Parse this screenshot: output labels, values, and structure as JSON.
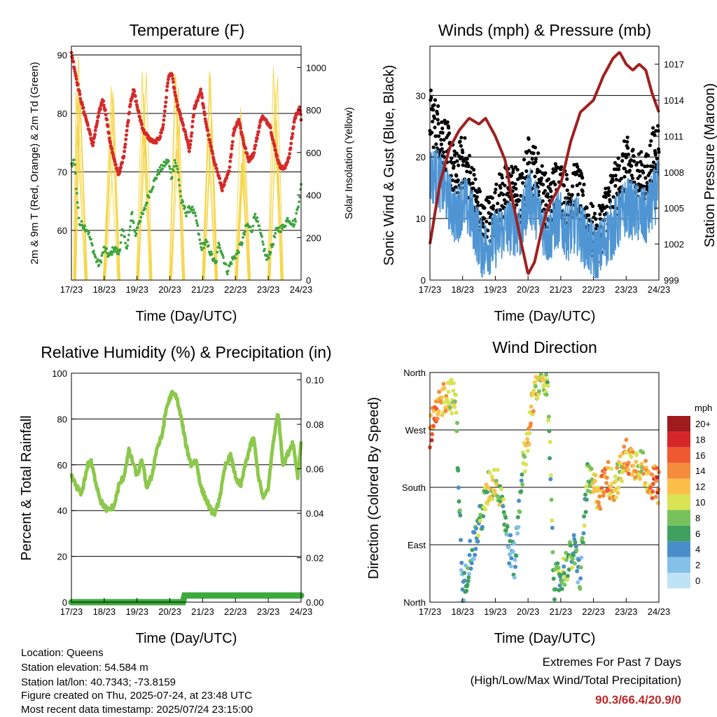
{
  "x_tick_labels": [
    "17/23",
    "18/23",
    "19/23",
    "20/23",
    "21/23",
    "22/23",
    "23/23",
    "24/23"
  ],
  "info": {
    "location": "Location: Queens",
    "elevation": "Station elevation: 54.584 m",
    "latlon": "Station lat/lon: 40.7343; -73.8159",
    "created": "Figure created on Thu, 2025-07-24, at 23:48 UTC",
    "recent": "Most recent data timestamp: 2025/07/24 23:15:00"
  },
  "extremes": {
    "line1": "Extremes For Past 7 Days",
    "line2": "(High/Low/Max Wind/Total Precipitation)",
    "values": "90.3/66.4/20.9/0"
  },
  "chart_data": [
    {
      "id": "temperature",
      "type": "line",
      "title": "Temperature (F)",
      "xlabel": "Time (Day/UTC)",
      "ylabel": "2m & 9m T (Red, Orange) & 2m Td (Green)",
      "ylabel_right": "Solar Insolation (Yellow)",
      "xlim": [
        0,
        7
      ],
      "ylim": [
        51.5,
        91.5
      ],
      "ylim_right": [
        0,
        1100
      ],
      "yticks": [
        60,
        70,
        80,
        90
      ],
      "yticks_right": [
        0,
        200,
        400,
        600,
        800,
        1000
      ],
      "grid": true,
      "colors": {
        "temperature": "#d42a2a",
        "dewpoint": "#3da33d",
        "solar": "#f5d442"
      },
      "series": [
        {
          "key": "temperature",
          "x": [
            0,
            0.05,
            0.15,
            0.3,
            0.5,
            0.65,
            0.8,
            0.95,
            1.05,
            1.15,
            1.3,
            1.45,
            1.6,
            1.8,
            1.9,
            2.05,
            2.2,
            2.4,
            2.55,
            2.7,
            2.8,
            2.95,
            3.05,
            3.2,
            3.35,
            3.5,
            3.6,
            3.75,
            3.95,
            4.05,
            4.15,
            4.3,
            4.45,
            4.6,
            4.8,
            4.95,
            5.1,
            5.25,
            5.4,
            5.55,
            5.7,
            5.8,
            6.05,
            6.2,
            6.35,
            6.5,
            6.65,
            6.8,
            6.95,
            7
          ],
          "y": [
            90.3,
            89,
            86,
            82,
            78,
            74.5,
            79,
            82.5,
            80,
            76,
            72,
            69.5,
            73,
            82,
            84,
            80,
            77,
            75.5,
            75,
            76,
            78,
            86,
            87,
            82,
            79,
            76,
            73.5,
            81,
            84,
            80,
            77,
            73,
            70,
            67,
            70,
            77,
            79,
            75,
            72,
            73,
            77,
            79.5,
            78,
            74,
            71,
            70.5,
            73,
            79,
            81,
            79
          ]
        },
        {
          "key": "dewpoint",
          "x": [
            0,
            0.1,
            0.15,
            0.25,
            0.35,
            0.5,
            0.65,
            0.75,
            0.85,
            1,
            1.15,
            1.3,
            1.45,
            1.55,
            1.7,
            1.85,
            1.95,
            2.05,
            2.2,
            2.35,
            2.5,
            2.65,
            2.8,
            2.95,
            3.05,
            3.15,
            3.25,
            3.35,
            3.5,
            3.65,
            3.8,
            3.95,
            4.1,
            4.25,
            4.4,
            4.5,
            4.6,
            4.75,
            4.9,
            5.05,
            5.2,
            5.35,
            5.5,
            5.6,
            5.8,
            5.95,
            6.1,
            6.25,
            6.45,
            6.6,
            6.8,
            6.9,
            7
          ],
          "y": [
            71,
            72,
            67,
            61,
            61,
            60,
            57,
            55,
            54,
            57,
            55.5,
            57,
            56,
            60,
            57,
            63,
            59,
            61.5,
            63,
            66,
            68,
            70,
            71,
            72,
            69,
            72,
            70,
            65,
            63,
            64,
            62,
            57,
            58,
            56,
            54,
            58,
            56,
            53,
            55,
            56,
            58,
            61,
            60,
            63,
            58.5,
            55,
            57,
            60,
            60.5,
            62,
            61,
            64,
            67.5
          ]
        },
        {
          "key": "solar",
          "peaks": [
            [
              0.2,
              0.1,
              0.45,
              1050
            ],
            [
              1.25,
              1.0,
              1.45,
              960
            ],
            [
              2.22,
              2.02,
              2.42,
              1080
            ],
            [
              3.22,
              3.02,
              3.42,
              1030
            ],
            [
              4.22,
              4.02,
              4.42,
              1020
            ],
            [
              5.22,
              5.02,
              5.42,
              880
            ],
            [
              6.22,
              6.02,
              6.42,
              1010
            ]
          ]
        }
      ]
    },
    {
      "id": "winds",
      "type": "scatter",
      "title": "Winds (mph) & Pressure (mb)",
      "xlabel": "Time (Day/UTC)",
      "ylabel": "Sonic Wind & Gust (Blue, Black)",
      "ylabel_right": "Station Pressure (Maroon)",
      "xlim": [
        0,
        7
      ],
      "ylim": [
        0,
        38
      ],
      "ylim_right": [
        999,
        1018.5
      ],
      "yticks": [
        0,
        10,
        20,
        30
      ],
      "yticks_right": [
        999,
        1002,
        1005,
        1008,
        1011,
        1014,
        1017
      ],
      "grid": true,
      "colors": {
        "wind": "#4f95d3",
        "gust": "#000000",
        "pressure": "#a02020"
      },
      "series": [
        {
          "key": "wind",
          "x": [
            0,
            0.2,
            0.5,
            0.8,
            1.0,
            1.3,
            1.6,
            1.9,
            2.2,
            2.5,
            2.8,
            3.0,
            3.3,
            3.6,
            3.9,
            4.2,
            4.5,
            4.8,
            5.1,
            5.4,
            5.7,
            6.0,
            6.3,
            6.6,
            6.9,
            7
          ],
          "y": [
            17,
            17,
            14,
            10,
            13,
            10,
            5,
            6,
            8,
            9,
            8,
            14,
            11,
            7,
            10,
            8,
            9,
            6,
            4,
            7,
            9,
            12,
            11,
            10,
            14,
            15
          ]
        },
        {
          "key": "gust",
          "x": [
            0,
            0.2,
            0.5,
            0.8,
            1.0,
            1.3,
            1.6,
            1.9,
            2.2,
            2.5,
            2.8,
            3.0,
            3.3,
            3.6,
            3.9,
            4.2,
            4.5,
            4.8,
            5.1,
            5.4,
            5.7,
            6.0,
            6.3,
            6.6,
            6.9,
            7
          ],
          "y": [
            27,
            25,
            22,
            16,
            20,
            15,
            9,
            10,
            14,
            15,
            13,
            19,
            17,
            12,
            16,
            13,
            15,
            10,
            6,
            12,
            15,
            19,
            17,
            16,
            22,
            22
          ]
        },
        {
          "key": "pressure",
          "x": [
            0,
            0.3,
            0.6,
            0.9,
            1.2,
            1.5,
            1.7,
            2.0,
            2.3,
            2.5,
            2.8,
            3.0,
            3.2,
            3.4,
            3.6,
            3.8,
            4.0,
            4.3,
            4.6,
            5.0,
            5.3,
            5.6,
            5.8,
            6.0,
            6.2,
            6.4,
            6.6,
            6.8,
            7
          ],
          "y": [
            1002,
            1007,
            1010,
            1011.5,
            1012.5,
            1012,
            1012.5,
            1011,
            1009,
            1006,
            1002,
            999.5,
            1000.5,
            1003,
            1005,
            1006,
            1007,
            1010.5,
            1013,
            1014,
            1016,
            1017.5,
            1018,
            1017,
            1016.5,
            1017,
            1016.5,
            1014.5,
            1013
          ]
        }
      ]
    },
    {
      "id": "humidity",
      "type": "line",
      "title": "Relative Humidity (%) & Precipitation (in)",
      "xlabel": "Time (Day/UTC)",
      "ylabel": "Percent & Total Rainfall",
      "xlim": [
        0,
        7
      ],
      "ylim": [
        0,
        100
      ],
      "ylim_right": [
        0,
        0.103
      ],
      "yticks": [
        0,
        20,
        40,
        60,
        80,
        100
      ],
      "yticks_right_labels": [
        "0.00",
        "0.02",
        "0.04",
        "0.06",
        "0.08",
        "0.10"
      ],
      "grid": true,
      "colors": {
        "rh": "#8cc84b",
        "precip": "#3daa3d"
      },
      "series": [
        {
          "key": "rh",
          "x": [
            0,
            0.1,
            0.3,
            0.5,
            0.6,
            0.75,
            0.9,
            1.1,
            1.3,
            1.45,
            1.6,
            1.75,
            1.9,
            2.0,
            2.15,
            2.3,
            2.45,
            2.6,
            2.75,
            2.9,
            3.05,
            3.2,
            3.35,
            3.5,
            3.65,
            3.8,
            3.95,
            4.1,
            4.25,
            4.4,
            4.55,
            4.7,
            4.85,
            5.0,
            5.15,
            5.3,
            5.45,
            5.55,
            5.7,
            5.85,
            6.0,
            6.15,
            6.3,
            6.45,
            6.6,
            6.75,
            6.9,
            7
          ],
          "y": [
            55,
            52,
            47,
            60,
            61,
            52,
            44,
            40,
            42,
            51,
            55,
            66,
            60,
            55,
            62,
            50,
            55,
            67,
            72,
            85,
            91,
            90,
            80,
            68,
            60,
            62,
            50,
            45,
            40,
            39,
            48,
            60,
            64,
            55,
            50,
            60,
            68,
            72,
            55,
            45,
            50,
            70,
            83,
            60,
            65,
            70,
            55,
            70
          ]
        },
        {
          "key": "precip",
          "x": [
            0,
            3.4,
            3.45,
            7
          ],
          "y": [
            0,
            0,
            0.003,
            0.003
          ]
        }
      ]
    },
    {
      "id": "direction",
      "type": "scatter",
      "title": "Wind Direction",
      "xlabel": "Time (Day/UTC)",
      "ylabel": "Direction (Colored By Speed)",
      "xlim": [
        0,
        7
      ],
      "ylim": [
        0,
        360
      ],
      "yticks": [
        0,
        90,
        180,
        270,
        360
      ],
      "yticks_labels": [
        "North",
        "East",
        "South",
        "West",
        "North"
      ],
      "grid": true,
      "legend_title": "mph",
      "legend_placement": "right",
      "legend_labels": [
        "0",
        "2",
        "4",
        "6",
        "8",
        "10",
        "12",
        "14",
        "16",
        "18",
        "20+"
      ],
      "legend_colors": [
        "#bde3f5",
        "#84c0e8",
        "#4a8ec9",
        "#3fa060",
        "#77c25c",
        "#d9e354",
        "#fbc04a",
        "#f58b3c",
        "#ef5a30",
        "#d7262a",
        "#a01b1e"
      ],
      "series": [
        {
          "key": "dir",
          "x": [
            0,
            0.2,
            0.4,
            0.6,
            0.8,
            1.0,
            1.2,
            1.4,
            1.6,
            1.8,
            2.0,
            2.2,
            2.4,
            2.6,
            2.8,
            3.0,
            3.2,
            3.4,
            3.6,
            3.8,
            4.0,
            4.2,
            4.4,
            4.6,
            4.8,
            5.0,
            5.2,
            5.4,
            5.6,
            5.8,
            6.0,
            6.2,
            6.4,
            6.6,
            6.8,
            7
          ],
          "y": [
            270,
            290,
            320,
            330,
            310,
            5,
            70,
            100,
            140,
            180,
            190,
            170,
            90,
            60,
            200,
            260,
            330,
            360,
            340,
            30,
            40,
            60,
            80,
            40,
            190,
            180,
            170,
            200,
            180,
            200,
            230,
            220,
            220,
            200,
            190,
            180
          ],
          "speed": [
            16,
            14,
            12,
            10,
            8,
            3,
            5,
            6,
            7,
            10,
            10,
            8,
            4,
            3,
            6,
            12,
            12,
            10,
            8,
            7,
            6,
            8,
            6,
            5,
            8,
            10,
            12,
            14,
            12,
            10,
            14,
            12,
            10,
            12,
            14,
            16
          ]
        }
      ]
    }
  ]
}
